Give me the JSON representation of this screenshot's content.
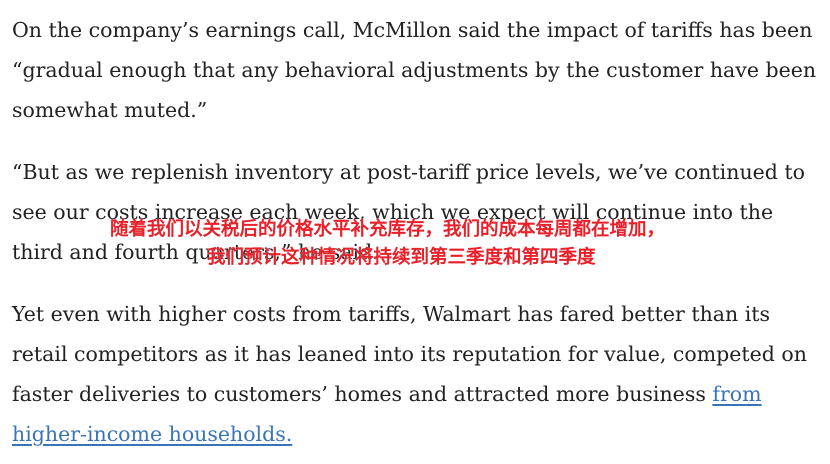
{
  "article": {
    "paragraph1": "On the company’s earnings call, McMillon said the impact of tariffs has been “gradual enough that any behavioral adjustments by the customer have been somewhat muted.”",
    "paragraph2": "“But as we replenish inventory at post-tariff price levels, we’ve continued to see our costs increase each week, which we expect will continue into the third and fourth quarters,” he said.",
    "paragraph3_text": "Yet even with higher costs from tariffs, Walmart has fared better than its retail competitors as it has leaned into its reputation for value, competed on faster deliveries to customers’ homes and attracted more business ",
    "paragraph3_link": "from higher-income households."
  },
  "subtitle_overlay": {
    "line1": "随着我们以关税后的价格水平补充库存，我们的成本每周都在增加，",
    "line2": "我们预计这种情况将持续到第三季度和第四季度"
  },
  "colors": {
    "text": "#222222",
    "link": "#3a74b8",
    "overlay": "#e8202a"
  }
}
